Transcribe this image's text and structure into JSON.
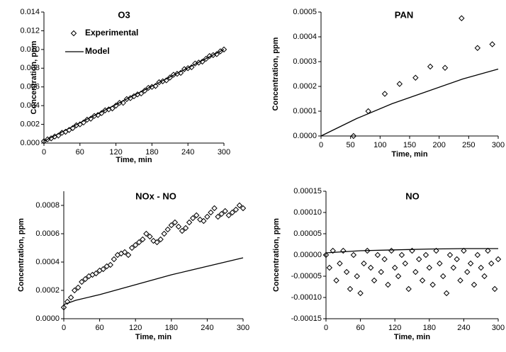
{
  "chart_data": [
    {
      "type": "scatter",
      "title": "O3",
      "x_label": "Time, min",
      "y_label": "Concentration, ppm",
      "legend": "upper left",
      "xlim": [
        0,
        300
      ],
      "xticks": [
        0,
        60,
        120,
        180,
        240,
        300
      ],
      "ylim": [
        0,
        0.014
      ],
      "yticks": [
        {
          "value": 0,
          "label": "0.000"
        },
        {
          "value": 0.002,
          "label": "0.002"
        },
        {
          "value": 0.004,
          "label": "0.004"
        },
        {
          "value": 0.006,
          "label": "0.006"
        },
        {
          "value": 0.008,
          "label": "0.008"
        },
        {
          "value": 0.01,
          "label": "0.010"
        },
        {
          "value": 0.012,
          "label": "0.012"
        },
        {
          "value": 0.014,
          "label": "0.014"
        }
      ],
      "series": [
        {
          "name": "Experimental",
          "style": "markers",
          "color": "#000000",
          "x": [
            0,
            6,
            12,
            18,
            24,
            30,
            36,
            42,
            48,
            54,
            60,
            66,
            72,
            78,
            84,
            90,
            96,
            102,
            108,
            114,
            120,
            126,
            132,
            138,
            144,
            150,
            156,
            162,
            168,
            174,
            180,
            186,
            192,
            198,
            204,
            210,
            216,
            222,
            228,
            234,
            240,
            246,
            252,
            258,
            264,
            270,
            276,
            282,
            288,
            294,
            300
          ],
          "values": [
            0.0002,
            0.0004,
            0.0005,
            0.0007,
            0.0008,
            0.0011,
            0.0012,
            0.0014,
            0.0016,
            0.0019,
            0.002,
            0.0022,
            0.0025,
            0.0026,
            0.0029,
            0.003,
            0.0032,
            0.0035,
            0.0036,
            0.0037,
            0.004,
            0.0043,
            0.0043,
            0.0047,
            0.0048,
            0.005,
            0.0052,
            0.0053,
            0.0056,
            0.0059,
            0.006,
            0.0061,
            0.0065,
            0.0066,
            0.0067,
            0.007,
            0.0073,
            0.0074,
            0.0075,
            0.0079,
            0.008,
            0.0081,
            0.0085,
            0.0086,
            0.0087,
            0.009,
            0.0093,
            0.0094,
            0.0095,
            0.0098,
            0.01
          ]
        },
        {
          "name": "Model",
          "style": "line",
          "color": "#000000",
          "x": [
            0,
            150,
            300
          ],
          "values": [
            0.0002,
            0.0051,
            0.01
          ]
        }
      ]
    },
    {
      "type": "scatter",
      "title": "PAN",
      "x_label": "Time, min",
      "y_label": "Concentration, ppm",
      "xlim": [
        0,
        300
      ],
      "xticks": [
        0,
        50,
        100,
        150,
        200,
        250,
        300
      ],
      "ylim": [
        0,
        0.0005
      ],
      "yticks": [
        {
          "value": 0,
          "label": "0.0000"
        },
        {
          "value": 0.0001,
          "label": "0.0001"
        },
        {
          "value": 0.0002,
          "label": "0.0002"
        },
        {
          "value": 0.0003,
          "label": "0.0003"
        },
        {
          "value": 0.0004,
          "label": "0.0004"
        },
        {
          "value": 0.0005,
          "label": "0.0005"
        }
      ],
      "series": [
        {
          "style": "markers",
          "color": "#000000",
          "x": [
            55,
            80,
            108,
            133,
            160,
            185,
            210,
            238,
            265,
            290
          ],
          "values": [
            0,
            0.0001,
            0.00017,
            0.00021,
            0.000235,
            0.00028,
            0.000275,
            0.000475,
            0.000355,
            0.00037
          ]
        },
        {
          "style": "line",
          "color": "#000000",
          "x": [
            0,
            60,
            120,
            180,
            240,
            300
          ],
          "values": [
            0,
            7e-05,
            0.00013,
            0.00018,
            0.00023,
            0.00027
          ]
        }
      ]
    },
    {
      "type": "scatter",
      "title": "NOx - NO",
      "x_label": "Time, min",
      "y_label": "Concentration, ppm",
      "xlim": [
        0,
        300
      ],
      "xticks": [
        0,
        60,
        120,
        180,
        240,
        300
      ],
      "ylim": [
        0,
        0.0009
      ],
      "yticks": [
        {
          "value": 0,
          "label": "0.0000"
        },
        {
          "value": 0.0002,
          "label": "0.0002"
        },
        {
          "value": 0.0004,
          "label": "0.0004"
        },
        {
          "value": 0.0006,
          "label": "0.0006"
        },
        {
          "value": 0.0008,
          "label": "0.0008"
        }
      ],
      "series": [
        {
          "style": "markers",
          "color": "#000000",
          "x": [
            0,
            6,
            12,
            18,
            24,
            30,
            36,
            42,
            48,
            54,
            60,
            66,
            72,
            78,
            84,
            90,
            96,
            102,
            108,
            114,
            120,
            126,
            132,
            138,
            144,
            150,
            156,
            162,
            168,
            174,
            180,
            186,
            192,
            198,
            204,
            210,
            216,
            222,
            228,
            234,
            240,
            246,
            252,
            258,
            264,
            270,
            276,
            282,
            288,
            294,
            300
          ],
          "values": [
            8e-05,
            0.00012,
            0.00015,
            0.0002,
            0.00022,
            0.00026,
            0.00028,
            0.0003,
            0.00031,
            0.00032,
            0.00034,
            0.00035,
            0.00037,
            0.00038,
            0.00042,
            0.00045,
            0.00046,
            0.00047,
            0.00045,
            0.0005,
            0.00052,
            0.00054,
            0.00056,
            0.0006,
            0.00058,
            0.00055,
            0.00054,
            0.00056,
            0.0006,
            0.00063,
            0.00066,
            0.00068,
            0.00065,
            0.00062,
            0.00064,
            0.00068,
            0.00071,
            0.00073,
            0.0007,
            0.00069,
            0.00072,
            0.00075,
            0.00078,
            0.00072,
            0.00074,
            0.00076,
            0.00073,
            0.00075,
            0.00077,
            0.0008,
            0.00078
          ]
        },
        {
          "style": "line",
          "color": "#000000",
          "x": [
            0,
            20,
            60,
            120,
            180,
            240,
            300
          ],
          "values": [
            0.0001,
            0.00013,
            0.00017,
            0.00024,
            0.00031,
            0.00037,
            0.00043
          ]
        }
      ]
    },
    {
      "type": "scatter",
      "title": "NO",
      "x_label": "Time, min",
      "y_label": "Concentration, ppm",
      "xlim": [
        0,
        300
      ],
      "xticks": [
        0,
        60,
        120,
        180,
        240,
        300
      ],
      "ylim": [
        -0.00015,
        0.00015
      ],
      "yticks": [
        {
          "value": -0.00015,
          "label": "-0.00015"
        },
        {
          "value": -0.0001,
          "label": "-0.00010"
        },
        {
          "value": -5e-05,
          "label": "-0.00005"
        },
        {
          "value": 0,
          "label": "0.00000"
        },
        {
          "value": 5e-05,
          "label": "0.00005"
        },
        {
          "value": 0.0001,
          "label": "0.00010"
        },
        {
          "value": 0.00015,
          "label": "0.00015"
        }
      ],
      "series": [
        {
          "style": "markers",
          "color": "#000000",
          "x": [
            0,
            6,
            12,
            18,
            24,
            30,
            36,
            42,
            48,
            54,
            60,
            66,
            72,
            78,
            84,
            90,
            96,
            102,
            108,
            114,
            120,
            126,
            132,
            138,
            144,
            150,
            156,
            162,
            168,
            174,
            180,
            186,
            192,
            198,
            204,
            210,
            216,
            222,
            228,
            234,
            240,
            246,
            252,
            258,
            264,
            270,
            276,
            282,
            288,
            294,
            300
          ],
          "values": [
            0,
            -3e-05,
            1e-05,
            -6e-05,
            -2e-05,
            1e-05,
            -4e-05,
            -8e-05,
            0,
            -5e-05,
            -9e-05,
            -2e-05,
            1e-05,
            -3e-05,
            -6e-05,
            0,
            -4e-05,
            -1e-05,
            -7e-05,
            1e-05,
            -3e-05,
            -5e-05,
            0,
            -2e-05,
            -8e-05,
            1e-05,
            -4e-05,
            -1e-05,
            -6e-05,
            0,
            -3e-05,
            -7e-05,
            1e-05,
            -2e-05,
            -5e-05,
            -9e-05,
            0,
            -3e-05,
            -1e-05,
            -6e-05,
            1e-05,
            -4e-05,
            -2e-05,
            -7e-05,
            0,
            -3e-05,
            -5e-05,
            1e-05,
            -2e-05,
            -8e-05,
            -1e-05
          ]
        },
        {
          "style": "line",
          "color": "#000000",
          "x": [
            0,
            60,
            120,
            180,
            240,
            300
          ],
          "values": [
            5e-06,
            1e-05,
            1.2e-05,
            1.4e-05,
            1.5e-05,
            1.5e-05
          ]
        }
      ]
    }
  ]
}
